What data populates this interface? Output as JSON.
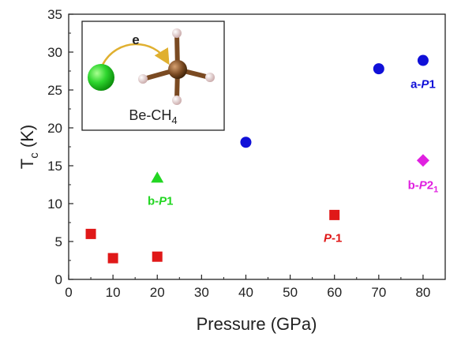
{
  "chart_data": {
    "type": "scatter",
    "xlabel": "Pressure (GPa)",
    "ylabel_main": "T",
    "ylabel_sub": "c",
    "ylabel_unit": " (K)",
    "xlim": [
      0,
      85
    ],
    "ylim": [
      0,
      35
    ],
    "xticks": [
      0,
      10,
      20,
      30,
      40,
      50,
      60,
      70,
      80
    ],
    "yticks": [
      0,
      5,
      10,
      15,
      20,
      25,
      30,
      35
    ],
    "grid": false,
    "series": [
      {
        "name": "a-P1",
        "label_parts": [
          {
            "t": "a-",
            "i": false
          },
          {
            "t": "P",
            "i": true
          },
          {
            "t": "1",
            "i": false
          }
        ],
        "marker": "circle",
        "color": "#1010d8",
        "points": [
          [
            40,
            18.1
          ],
          [
            70,
            27.8
          ],
          [
            80,
            28.9
          ]
        ]
      },
      {
        "name": "b-P1",
        "label_parts": [
          {
            "t": "b-",
            "i": false
          },
          {
            "t": "P",
            "i": true
          },
          {
            "t": "1",
            "i": false
          }
        ],
        "marker": "triangle",
        "color": "#22d622",
        "points": [
          [
            20,
            13.4
          ]
        ]
      },
      {
        "name": "P-1",
        "label_parts": [
          {
            "t": "P",
            "i": true
          },
          {
            "t": "-1",
            "i": false
          }
        ],
        "marker": "square",
        "color": "#e01818",
        "points": [
          [
            5,
            6.0
          ],
          [
            10,
            2.8
          ],
          [
            20,
            3.0
          ],
          [
            60,
            8.5
          ]
        ]
      },
      {
        "name": "b-P21",
        "label_parts": [
          {
            "t": "b-",
            "i": false
          },
          {
            "t": "P",
            "i": true
          },
          {
            "t": "2",
            "i": false
          },
          {
            "t": "1",
            "i": false,
            "sub": true
          }
        ],
        "marker": "diamond",
        "color": "#e020e0",
        "points": [
          [
            80,
            15.7
          ]
        ]
      }
    ],
    "inset": {
      "electron_label": "e",
      "caption_main": "Be-CH",
      "caption_sub": "4"
    }
  }
}
